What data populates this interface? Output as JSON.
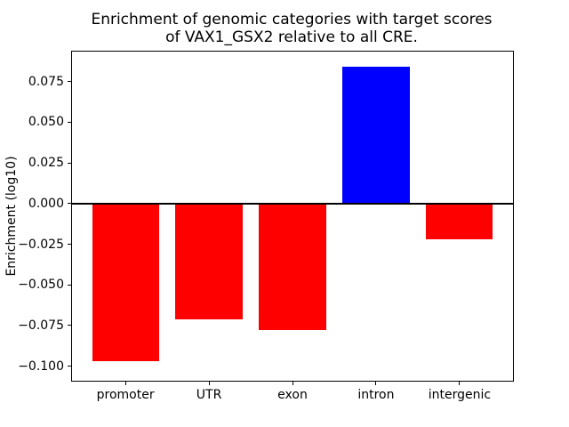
{
  "figure": {
    "background": "#ffffff"
  },
  "chart_data": {
    "type": "bar",
    "title": "Enrichment of genomic categories with target scores\nof VAX1_GSX2 relative to all CRE.",
    "ylabel": "Enrichment (log10)",
    "xlabel": "",
    "categories": [
      "promoter",
      "UTR",
      "exon",
      "intron",
      "intergenic"
    ],
    "values": [
      -0.097,
      -0.071,
      -0.078,
      0.084,
      -0.022
    ],
    "bar_colors": [
      "#ff0000",
      "#ff0000",
      "#ff0000",
      "#0000ff",
      "#ff0000"
    ],
    "positive_color": "#0000ff",
    "negative_color": "#ff0000",
    "yticks": [
      {
        "value": 0.075,
        "label": "0.075"
      },
      {
        "value": 0.05,
        "label": "0.050"
      },
      {
        "value": 0.025,
        "label": "0.025"
      },
      {
        "value": 0.0,
        "label": "0.000"
      },
      {
        "value": -0.025,
        "label": "−0.025"
      },
      {
        "value": -0.05,
        "label": "−0.050"
      },
      {
        "value": -0.075,
        "label": "−0.075"
      },
      {
        "value": -0.1,
        "label": "−0.100"
      }
    ],
    "ylim": [
      -0.109,
      0.0935
    ],
    "xlim": [
      -0.64,
      4.64
    ],
    "bar_width": 0.8,
    "zero_line": true,
    "grid": false,
    "legend": null
  }
}
